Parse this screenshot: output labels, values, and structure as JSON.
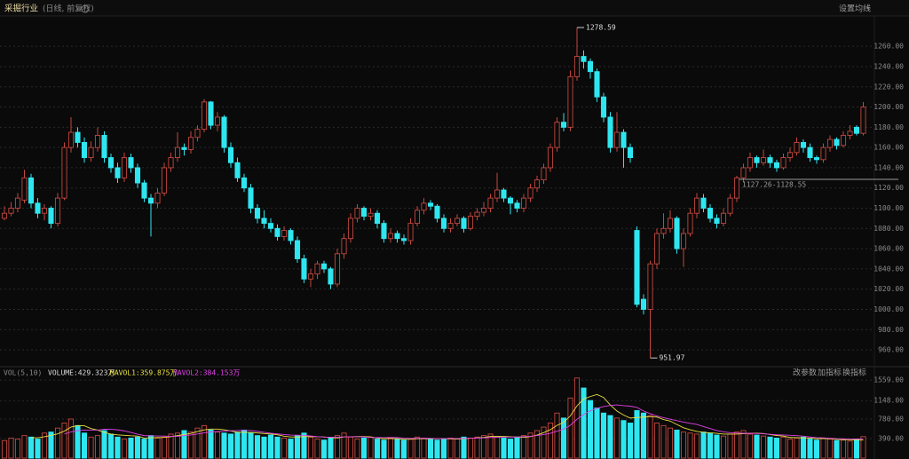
{
  "header": {
    "title": "采掘行业",
    "subtitle": "(日线, 前复权)",
    "settings": "设置均线"
  },
  "chart_data": [
    {
      "type": "candlestick",
      "up_color": "#c4473f",
      "down_color": "#2ee6f0",
      "ylim": [
        946,
        1290
      ],
      "yticks": [
        {
          "value": 960,
          "label": "960.00"
        },
        {
          "value": 980,
          "label": "980.00"
        },
        {
          "value": 1000,
          "label": "1000.00"
        },
        {
          "value": 1020,
          "label": "1020.00"
        },
        {
          "value": 1040,
          "label": "1040.00"
        },
        {
          "value": 1060,
          "label": "1060.00"
        },
        {
          "value": 1080,
          "label": "1080.00"
        },
        {
          "value": 1100,
          "label": "1100.00"
        },
        {
          "value": 1120,
          "label": "1120.00"
        },
        {
          "value": 1140,
          "label": "1140.00"
        },
        {
          "value": 1160,
          "label": "1160.00"
        },
        {
          "value": 1180,
          "label": "1180.00"
        },
        {
          "value": 1200,
          "label": "1200.00"
        },
        {
          "value": 1220,
          "label": "1220.00"
        },
        {
          "value": 1240,
          "label": "1240.00"
        },
        {
          "value": 1260,
          "label": "1260.00"
        }
      ],
      "grid": true,
      "high_label": "1278.59",
      "low_label": "951.97",
      "range_marker": {
        "low": 1127.26,
        "high": 1128.55,
        "label": "1127.26-1128.55"
      },
      "candles": [
        [
          1090,
          1102,
          1088,
          1095
        ],
        [
          1095,
          1106,
          1092,
          1100
        ],
        [
          1100,
          1115,
          1096,
          1110
        ],
        [
          1108,
          1138,
          1105,
          1130
        ],
        [
          1130,
          1134,
          1100,
          1105
        ],
        [
          1105,
          1110,
          1090,
          1095
        ],
        [
          1095,
          1104,
          1088,
          1100
        ],
        [
          1100,
          1102,
          1080,
          1085
        ],
        [
          1085,
          1115,
          1082,
          1110
        ],
        [
          1110,
          1165,
          1108,
          1160
        ],
        [
          1160,
          1190,
          1155,
          1175
        ],
        [
          1175,
          1180,
          1160,
          1165
        ],
        [
          1165,
          1170,
          1145,
          1150
        ],
        [
          1150,
          1166,
          1146,
          1160
        ],
        [
          1160,
          1180,
          1156,
          1172
        ],
        [
          1172,
          1176,
          1145,
          1150
        ],
        [
          1150,
          1154,
          1135,
          1140
        ],
        [
          1140,
          1145,
          1125,
          1130
        ],
        [
          1130,
          1155,
          1126,
          1150
        ],
        [
          1150,
          1154,
          1135,
          1140
        ],
        [
          1140,
          1144,
          1120,
          1125
        ],
        [
          1125,
          1128,
          1106,
          1110
        ],
        [
          1110,
          1114,
          1072,
          1105
        ],
        [
          1105,
          1120,
          1100,
          1115
        ],
        [
          1115,
          1145,
          1112,
          1140
        ],
        [
          1140,
          1155,
          1136,
          1150
        ],
        [
          1150,
          1175,
          1146,
          1160
        ],
        [
          1160,
          1164,
          1152,
          1158
        ],
        [
          1158,
          1176,
          1154,
          1170
        ],
        [
          1170,
          1182,
          1166,
          1178
        ],
        [
          1178,
          1208,
          1175,
          1205
        ],
        [
          1205,
          1206,
          1178,
          1182
        ],
        [
          1182,
          1195,
          1176,
          1190
        ],
        [
          1190,
          1192,
          1155,
          1160
        ],
        [
          1160,
          1165,
          1140,
          1145
        ],
        [
          1145,
          1150,
          1126,
          1130
        ],
        [
          1130,
          1134,
          1116,
          1120
        ],
        [
          1120,
          1124,
          1095,
          1100
        ],
        [
          1100,
          1104,
          1085,
          1090
        ],
        [
          1090,
          1098,
          1080,
          1085
        ],
        [
          1085,
          1090,
          1076,
          1080
        ],
        [
          1080,
          1084,
          1068,
          1072
        ],
        [
          1072,
          1082,
          1068,
          1078
        ],
        [
          1078,
          1080,
          1064,
          1068
        ],
        [
          1068,
          1072,
          1046,
          1050
        ],
        [
          1050,
          1054,
          1026,
          1030
        ],
        [
          1030,
          1040,
          1022,
          1035
        ],
        [
          1035,
          1048,
          1030,
          1045
        ],
        [
          1045,
          1048,
          1036,
          1040
        ],
        [
          1040,
          1042,
          1020,
          1025
        ],
        [
          1025,
          1060,
          1022,
          1055
        ],
        [
          1055,
          1075,
          1050,
          1070
        ],
        [
          1070,
          1095,
          1066,
          1090
        ],
        [
          1090,
          1104,
          1086,
          1100
        ],
        [
          1100,
          1102,
          1088,
          1092
        ],
        [
          1092,
          1100,
          1088,
          1095
        ],
        [
          1095,
          1098,
          1080,
          1085
        ],
        [
          1085,
          1088,
          1066,
          1070
        ],
        [
          1070,
          1080,
          1066,
          1075
        ],
        [
          1075,
          1078,
          1066,
          1070
        ],
        [
          1070,
          1074,
          1064,
          1068
        ],
        [
          1068,
          1090,
          1064,
          1085
        ],
        [
          1085,
          1102,
          1082,
          1098
        ],
        [
          1098,
          1110,
          1094,
          1105
        ],
        [
          1105,
          1108,
          1098,
          1102
        ],
        [
          1102,
          1104,
          1086,
          1090
        ],
        [
          1090,
          1094,
          1076,
          1080
        ],
        [
          1080,
          1090,
          1076,
          1085
        ],
        [
          1085,
          1094,
          1082,
          1090
        ],
        [
          1090,
          1092,
          1076,
          1080
        ],
        [
          1080,
          1096,
          1078,
          1092
        ],
        [
          1092,
          1100,
          1088,
          1096
        ],
        [
          1096,
          1106,
          1092,
          1100
        ],
        [
          1100,
          1114,
          1096,
          1110
        ],
        [
          1110,
          1135,
          1106,
          1118
        ],
        [
          1118,
          1120,
          1106,
          1110
        ],
        [
          1110,
          1112,
          1094,
          1105
        ],
        [
          1105,
          1108,
          1096,
          1100
        ],
        [
          1100,
          1114,
          1096,
          1110
        ],
        [
          1110,
          1124,
          1106,
          1120
        ],
        [
          1120,
          1132,
          1116,
          1128
        ],
        [
          1128,
          1144,
          1124,
          1140
        ],
        [
          1140,
          1164,
          1136,
          1160
        ],
        [
          1160,
          1190,
          1156,
          1185
        ],
        [
          1185,
          1194,
          1176,
          1180
        ],
        [
          1180,
          1236,
          1176,
          1230
        ],
        [
          1230,
          1278.59,
          1226,
          1250
        ],
        [
          1250,
          1256,
          1238,
          1245
        ],
        [
          1245,
          1248,
          1228,
          1235
        ],
        [
          1235,
          1238,
          1205,
          1210
        ],
        [
          1210,
          1214,
          1185,
          1190
        ],
        [
          1190,
          1195,
          1155,
          1160
        ],
        [
          1160,
          1195,
          1156,
          1175
        ],
        [
          1175,
          1178,
          1140,
          1160
        ],
        [
          1160,
          1164,
          1145,
          1150
        ],
        [
          1078,
          1082,
          1002,
          1005
        ],
        [
          1010,
          1015,
          995,
          1000
        ],
        [
          1000,
          1048,
          951.97,
          1045
        ],
        [
          1045,
          1080,
          1040,
          1075
        ],
        [
          1075,
          1095,
          1070,
          1080
        ],
        [
          1080,
          1098,
          1076,
          1090
        ],
        [
          1090,
          1092,
          1055,
          1060
        ],
        [
          1060,
          1080,
          1042,
          1075
        ],
        [
          1075,
          1100,
          1072,
          1095
        ],
        [
          1095,
          1115,
          1090,
          1110
        ],
        [
          1110,
          1114,
          1096,
          1100
        ],
        [
          1100,
          1104,
          1086,
          1090
        ],
        [
          1090,
          1094,
          1080,
          1085
        ],
        [
          1085,
          1100,
          1082,
          1095
        ],
        [
          1095,
          1114,
          1092,
          1110
        ],
        [
          1110,
          1132,
          1106,
          1130
        ],
        [
          1130,
          1144,
          1126,
          1140
        ],
        [
          1140,
          1155,
          1136,
          1150
        ],
        [
          1150,
          1152,
          1140,
          1145
        ],
        [
          1145,
          1158,
          1142,
          1150
        ],
        [
          1150,
          1153,
          1140,
          1145
        ],
        [
          1145,
          1148,
          1136,
          1140
        ],
        [
          1140,
          1154,
          1138,
          1150
        ],
        [
          1150,
          1160,
          1146,
          1155
        ],
        [
          1155,
          1170,
          1152,
          1165
        ],
        [
          1165,
          1168,
          1155,
          1160
        ],
        [
          1160,
          1164,
          1146,
          1150
        ],
        [
          1150,
          1152,
          1144,
          1148
        ],
        [
          1148,
          1164,
          1145,
          1160
        ],
        [
          1160,
          1172,
          1156,
          1168
        ],
        [
          1168,
          1170,
          1158,
          1162
        ],
        [
          1162,
          1176,
          1160,
          1172
        ],
        [
          1172,
          1182,
          1168,
          1176
        ],
        [
          1180,
          1182,
          1172,
          1174
        ],
        [
          1174,
          1205,
          1172,
          1200
        ]
      ]
    },
    {
      "type": "volume",
      "title": "VOL(5,10)",
      "value_label": "VOLUME:429.323万",
      "controls": [
        "改参数",
        "加指标",
        "换指标"
      ],
      "ylim": [
        0,
        1702
      ],
      "yticks": [
        {
          "value": 390,
          "label": "390.00"
        },
        {
          "value": 780,
          "label": "780.00"
        },
        {
          "value": 1148,
          "label": "1148.00"
        },
        {
          "value": 1559,
          "label": "1559.00"
        }
      ],
      "values": [
        350,
        400,
        380,
        450,
        420,
        380,
        500,
        520,
        600,
        700,
        780,
        650,
        500,
        420,
        450,
        550,
        480,
        420,
        380,
        400,
        420,
        380,
        450,
        400,
        420,
        480,
        500,
        550,
        520,
        600,
        650,
        560,
        520,
        500,
        480,
        520,
        560,
        500,
        450,
        420,
        460,
        420,
        400,
        380,
        450,
        500,
        420,
        380,
        360,
        400,
        450,
        500,
        420,
        380,
        400,
        420,
        380,
        360,
        400,
        380,
        360,
        380,
        420,
        400,
        380,
        360,
        380,
        400,
        380,
        420,
        400,
        420,
        450,
        480,
        420,
        400,
        380,
        420,
        450,
        500,
        550,
        620,
        700,
        900,
        800,
        1200,
        1600,
        1400,
        1150,
        1000,
        900,
        850,
        800,
        750,
        700,
        950,
        900,
        850,
        700,
        650,
        600,
        560,
        520,
        500,
        480,
        520,
        500,
        460,
        440,
        480,
        520,
        550,
        480,
        460,
        440,
        420,
        400,
        420,
        380,
        400,
        420,
        380,
        360,
        400,
        380,
        350,
        360,
        340,
        380,
        429.323
      ],
      "series": [
        {
          "name": "MAVOL1:359.875万",
          "color": "#e8e040",
          "values": [
            null,
            null,
            null,
            null,
            406,
            406,
            426,
            454,
            484,
            540,
            620,
            650,
            646,
            590,
            560,
            514,
            480,
            464,
            456,
            446,
            440,
            400,
            406,
            410,
            414,
            426,
            450,
            470,
            494,
            530,
            564,
            580,
            580,
            566,
            542,
            516,
            516,
            512,
            502,
            490,
            482,
            466,
            438,
            422,
            422,
            430,
            430,
            426,
            422,
            412,
            402,
            422,
            426,
            430,
            430,
            424,
            400,
            388,
            392,
            388,
            376,
            376,
            388,
            388,
            388,
            388,
            388,
            384,
            380,
            388,
            396,
            404,
            414,
            434,
            434,
            434,
            426,
            420,
            414,
            430,
            460,
            508,
            568,
            654,
            714,
            844,
            1044,
            1180,
            1230,
            1270,
            1210,
            1060,
            940,
            860,
            800,
            810,
            820,
            830,
            820,
            770,
            740,
            672,
            606,
            566,
            532,
            516,
            504,
            496,
            480,
            480,
            480,
            488,
            494,
            498,
            490,
            470,
            452,
            440,
            412,
            408,
            404,
            400,
            388,
            392,
            388,
            374,
            370,
            366,
            362,
            359.875
          ]
        },
        {
          "name": "MAVOL2:384.153万",
          "color": "#e040e8",
          "values": [
            null,
            null,
            null,
            null,
            null,
            null,
            null,
            null,
            null,
            480,
            523,
            548,
            560,
            557,
            560,
            577,
            575,
            565,
            543,
            513,
            477,
            450,
            445,
            443,
            440,
            433,
            435,
            448,
            462,
            482,
            505,
            523,
            530,
            540,
            546,
            550,
            556,
            551,
            534,
            516,
            497,
            483,
            471,
            459,
            457,
            455,
            441,
            429,
            420,
            418,
            417,
            425,
            427,
            427,
            422,
            414,
            410,
            408,
            412,
            410,
            400,
            394,
            395,
            397,
            395,
            389,
            389,
            393,
            391,
            393,
            397,
            401,
            404,
            412,
            416,
            420,
            420,
            421,
            428,
            436,
            451,
            471,
            496,
            538,
            576,
            656,
            776,
            874,
            944,
            994,
            1029,
            1052,
            1062,
            1047,
            1037,
            1012,
            942,
            887,
            842,
            807,
            777,
            748,
            720,
            695,
            673,
            630,
            590,
            551,
            525,
            508,
            500,
            497,
            494,
            490,
            486,
            476,
            466,
            462,
            456,
            448,
            438,
            421,
            409,
            404,
            396,
            389,
            385,
            382,
            382,
            384.153
          ]
        }
      ]
    }
  ]
}
